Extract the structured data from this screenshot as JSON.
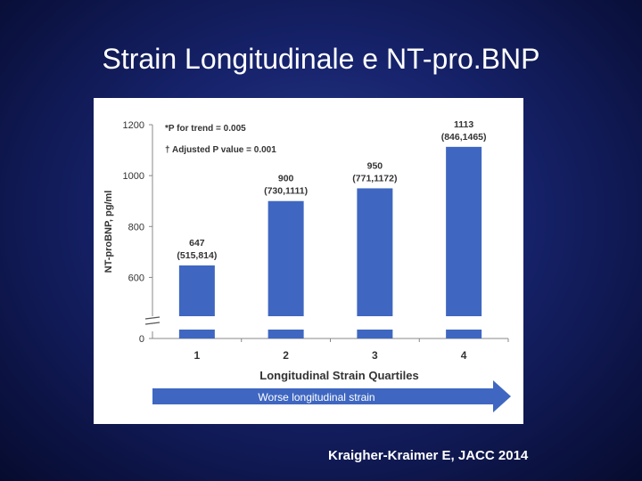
{
  "slide": {
    "title": "Strain Longitudinale e NT-pro.BNP",
    "citation": "Kraigher-Kraimer E, JACC 2014"
  },
  "chart_data": {
    "type": "bar",
    "categories": [
      "1",
      "2",
      "3",
      "4"
    ],
    "values": [
      647,
      900,
      950,
      1113
    ],
    "data_labels": [
      {
        "value": "647",
        "ci": "(515,814)"
      },
      {
        "value": "900",
        "ci": "(730,1111)"
      },
      {
        "value": "950",
        "ci": "(771,1172)"
      },
      {
        "value": "1113",
        "ci": "(846,1465)"
      }
    ],
    "annotations": [
      "*P for trend = 0.005",
      "† Adjusted P value = 0.001"
    ],
    "xlabel": "Longitudinal Strain Quartiles",
    "ylabel": "NT-proBNP, pg/ml",
    "yticks": [
      "0",
      "600",
      "800",
      "1000",
      "1200"
    ],
    "ylim": [
      500,
      1200
    ],
    "axis_break": true,
    "arrow_label": "Worse longitudinal strain",
    "colors": {
      "bar": "#3f67c1",
      "arrow": "#3f67c1",
      "text": "#333333"
    }
  }
}
